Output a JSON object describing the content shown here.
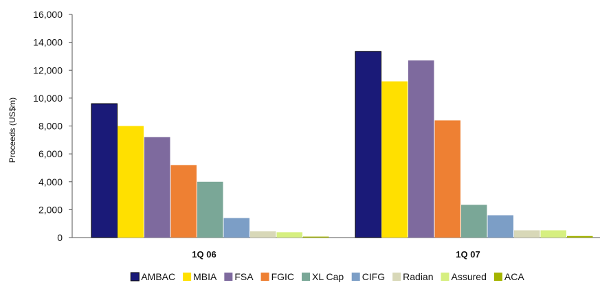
{
  "chart_data": {
    "type": "bar",
    "title": "",
    "xlabel": "",
    "ylabel": "Proceeds (US$m)",
    "ylim": [
      0,
      16000
    ],
    "yticks": [
      0,
      2000,
      4000,
      6000,
      8000,
      10000,
      12000,
      14000,
      16000
    ],
    "ytick_labels": [
      "0",
      "2,000",
      "4,000",
      "6,000",
      "8,000",
      "10,000",
      "12,000",
      "14,000",
      "16,000"
    ],
    "categories": [
      "1Q 06",
      "1Q 07"
    ],
    "series": [
      {
        "name": "AMBAC",
        "color": "#1a1a78",
        "values": [
          9600,
          13350
        ]
      },
      {
        "name": "MBIA",
        "color": "#ffe000",
        "values": [
          8000,
          11200
        ]
      },
      {
        "name": "FSA",
        "color": "#7e6a9e",
        "values": [
          7200,
          12700
        ]
      },
      {
        "name": "FGIC",
        "color": "#ee8033",
        "values": [
          5200,
          8400
        ]
      },
      {
        "name": "XL Cap",
        "color": "#7aa797",
        "values": [
          4000,
          2350
        ]
      },
      {
        "name": "CIFG",
        "color": "#7c9ec6",
        "values": [
          1400,
          1600
        ]
      },
      {
        "name": "Radian",
        "color": "#d8d8b8",
        "values": [
          450,
          520
        ]
      },
      {
        "name": "Assured",
        "color": "#d6ef80",
        "values": [
          380,
          520
        ]
      },
      {
        "name": "ACA",
        "color": "#a4b400",
        "values": [
          70,
          110
        ]
      }
    ],
    "grid": false,
    "legend_position": "bottom"
  }
}
